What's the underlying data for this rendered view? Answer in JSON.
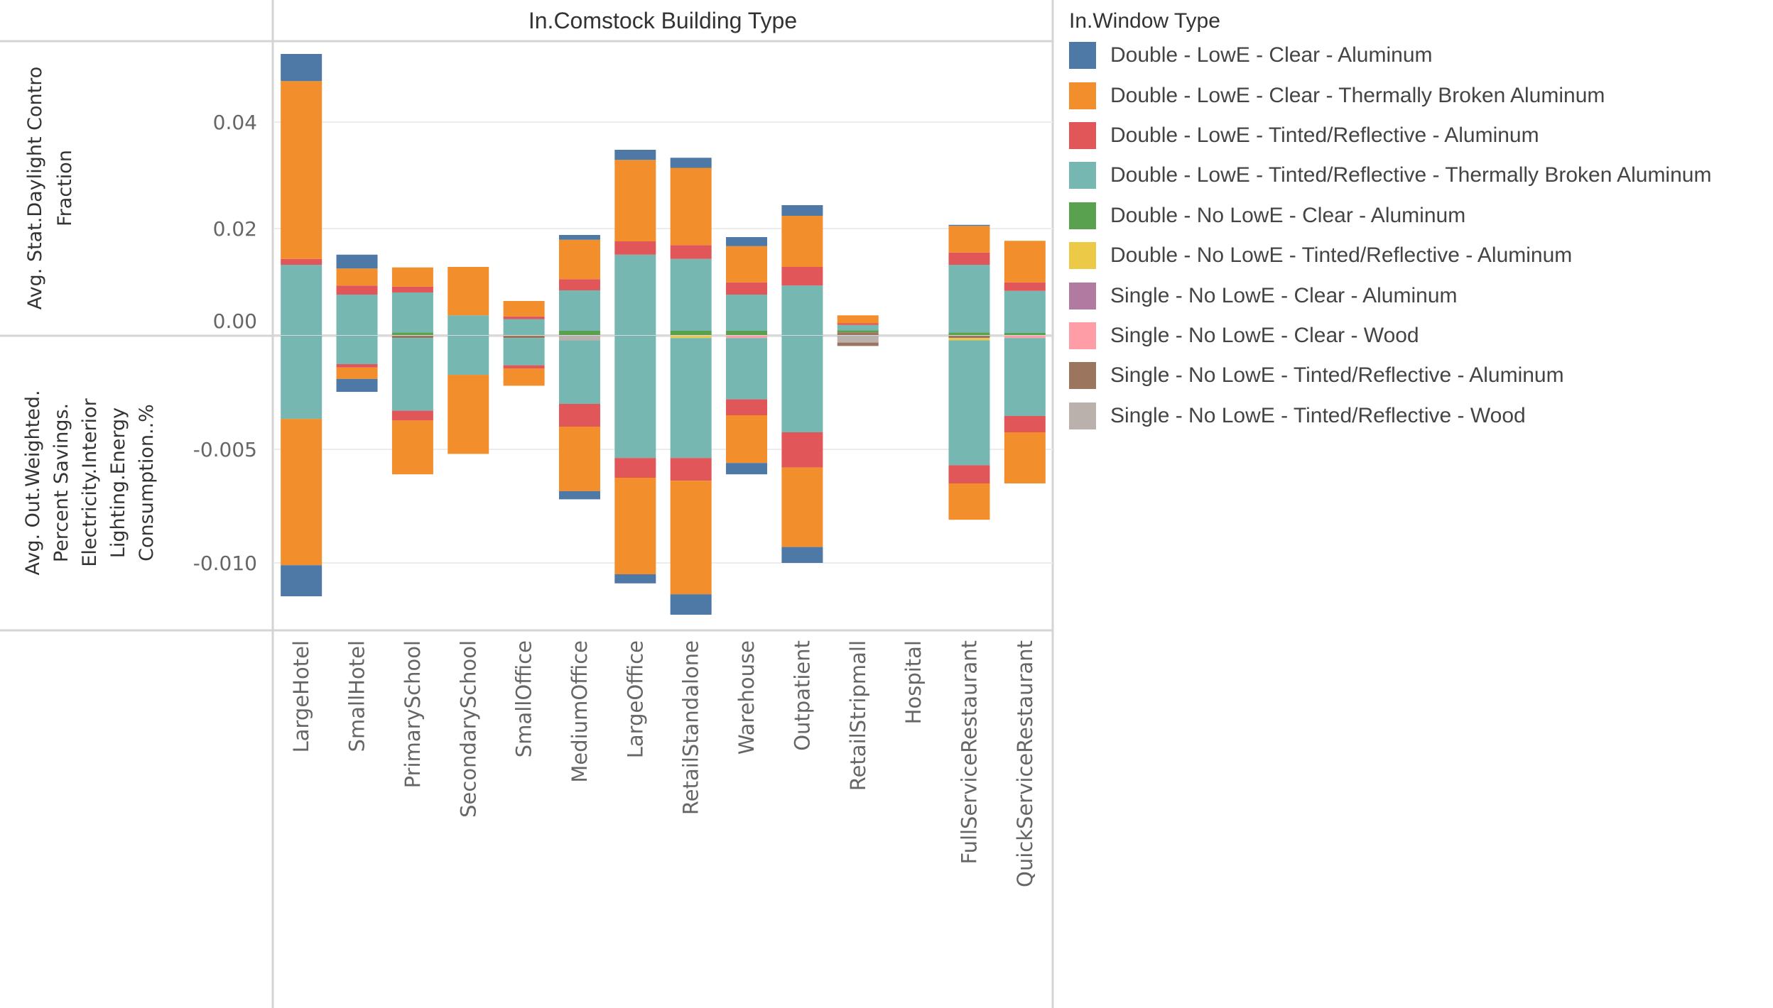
{
  "chart_data": {
    "type": "bar",
    "stacked": true,
    "column_header": "In.Comstock Building Type",
    "categories": [
      "LargeHotel",
      "SmallHotel",
      "PrimarySchool",
      "SecondarySchool",
      "SmallOffice",
      "MediumOffice",
      "LargeOffice",
      "RetailStandalone",
      "Warehouse",
      "Outpatient",
      "RetailStripmall",
      "Hospital",
      "FullServiceRestaurant",
      "QuickServiceRestaurant"
    ],
    "legend": {
      "title": "In.Window Type",
      "placement": "right",
      "entries": [
        {
          "key": "dl_clear_al",
          "label": "Double - LowE - Clear - Aluminum",
          "color": "#4E79A7"
        },
        {
          "key": "dl_clear_tb",
          "label": "Double - LowE - Clear - Thermally Broken Aluminum",
          "color": "#F28E2B"
        },
        {
          "key": "dl_tint_al",
          "label": "Double - LowE - Tinted/Reflective - Aluminum",
          "color": "#E15759"
        },
        {
          "key": "dl_tint_tb",
          "label": "Double - LowE - Tinted/Reflective - Thermally Broken Aluminum",
          "color": "#76B7B2"
        },
        {
          "key": "dn_clear_al",
          "label": "Double - No LowE - Clear - Aluminum",
          "color": "#59A14F"
        },
        {
          "key": "dn_tint_al",
          "label": "Double - No LowE - Tinted/Reflective - Aluminum",
          "color": "#EDC948"
        },
        {
          "key": "sn_clear_al",
          "label": "Single - No LowE - Clear - Aluminum",
          "color": "#B07AA1"
        },
        {
          "key": "sn_clear_wood",
          "label": "Single - No LowE - Clear - Wood",
          "color": "#FF9DA7"
        },
        {
          "key": "sn_tint_al",
          "label": "Single - No LowE - Tinted/Reflective - Aluminum",
          "color": "#9C755F"
        },
        {
          "key": "sn_tint_wood",
          "label": "Single - No LowE - Tinted/Reflective - Wood",
          "color": "#BAB0AC"
        }
      ]
    },
    "stack_order_from_zero": [
      "sn_tint_wood",
      "sn_tint_al",
      "sn_clear_wood",
      "sn_clear_al",
      "dn_tint_al",
      "dn_clear_al",
      "dl_tint_tb",
      "dl_tint_al",
      "dl_clear_tb",
      "dl_clear_al"
    ],
    "panes": [
      {
        "name": "daylight",
        "ylabel": "Avg. Stat.Daylight Contro Fraction",
        "ylim": [
          0,
          0.055
        ],
        "ticks": [
          0.0,
          0.02,
          0.04
        ],
        "tick_labels": [
          "0.00",
          "0.02",
          "0.04"
        ],
        "grid": true,
        "series": [
          {
            "key": "dl_clear_al",
            "values": [
              0.0051,
              0.0026,
              0,
              0,
              0,
              0.0009,
              0.0019,
              0.0019,
              0.0017,
              0.002,
              0,
              0,
              0.0002,
              0
            ]
          },
          {
            "key": "dl_clear_tb",
            "values": [
              0.0334,
              0.0032,
              0.0036,
              0.0091,
              0.0029,
              0.0074,
              0.0153,
              0.0145,
              0.0068,
              0.0096,
              0.0015,
              0,
              0.005,
              0.0078
            ]
          },
          {
            "key": "dl_tint_al",
            "values": [
              0.0011,
              0.0017,
              0.0011,
              0,
              0.0005,
              0.0021,
              0.0025,
              0.0026,
              0.0023,
              0.0035,
              0.0003,
              0,
              0.0023,
              0.0016
            ]
          },
          {
            "key": "dl_tint_tb",
            "values": [
              0.0132,
              0.0076,
              0.0075,
              0.0037,
              0.003,
              0.0076,
              0.0151,
              0.0135,
              0.0068,
              0.0093,
              0.001,
              0,
              0.0127,
              0.0079
            ]
          },
          {
            "key": "dn_clear_al",
            "values": [
              0,
              0,
              0.0005,
              0,
              0,
              0.0008,
              0,
              0.0008,
              0.0008,
              0,
              0.0004,
              0,
              0.0005,
              0.0004
            ]
          },
          {
            "key": "dn_tint_al",
            "values": [
              0,
              0,
              0,
              0,
              0,
              0,
              0,
              0,
              0,
              0,
              0,
              0,
              0,
              0
            ]
          },
          {
            "key": "sn_clear_al",
            "values": [
              0,
              0,
              0,
              0,
              0,
              0,
              0,
              0,
              0,
              0,
              0,
              0,
              0,
              0
            ]
          },
          {
            "key": "sn_clear_wood",
            "values": [
              0,
              0,
              0,
              0,
              0,
              0,
              0,
              0,
              0,
              0,
              0,
              0,
              0,
              0
            ]
          },
          {
            "key": "sn_tint_al",
            "values": [
              0,
              0,
              0,
              0,
              0,
              0,
              0,
              0,
              0,
              0,
              0.0005,
              0,
              0,
              0
            ]
          },
          {
            "key": "sn_tint_wood",
            "values": [
              0,
              0,
              0,
              0,
              0,
              0,
              0,
              0,
              0,
              0,
              0,
              0,
              0,
              0
            ]
          }
        ]
      },
      {
        "name": "savings",
        "ylabel": "Avg. Out.Weighted. Percent Savings. Electricity.Interior Lighting.Energy Consumption..%",
        "ylim": [
          -0.0129,
          0
        ],
        "ticks": [
          -0.005,
          -0.01
        ],
        "tick_labels": [
          "-0.005",
          "-0.010"
        ],
        "grid": true,
        "series": [
          {
            "key": "dl_clear_al",
            "values": [
              -0.00137,
              -0.00057,
              0,
              0,
              0,
              -0.00036,
              -0.0004,
              -0.0009,
              -0.0005,
              -0.0007,
              0,
              0,
              0,
              0
            ]
          },
          {
            "key": "dl_clear_tb",
            "values": [
              -0.00644,
              -0.0005,
              -0.00237,
              -0.00348,
              -0.00076,
              -0.00284,
              -0.00425,
              -0.005,
              -0.0021,
              -0.0035,
              0,
              0,
              -0.0016,
              -0.00225
            ]
          },
          {
            "key": "dl_tint_al",
            "values": [
              0,
              -0.00015,
              -0.00043,
              0,
              -0.00014,
              -0.001,
              -0.00087,
              -0.001,
              -0.0007,
              -0.00155,
              0,
              0,
              -0.0008,
              -0.00072
            ]
          },
          {
            "key": "dl_tint_tb",
            "values": [
              -0.00366,
              -0.00125,
              -0.0032,
              -0.00172,
              -0.0012,
              -0.0028,
              -0.00538,
              -0.00528,
              -0.0027,
              -0.00425,
              0,
              0,
              -0.0055,
              -0.00343
            ]
          },
          {
            "key": "dn_clear_al",
            "values": [
              0,
              0,
              0,
              0,
              0,
              0,
              0,
              0,
              0,
              0,
              0,
              0,
              0,
              0
            ]
          },
          {
            "key": "dn_tint_al",
            "values": [
              0,
              0,
              0,
              0,
              0,
              0,
              0,
              -0.0001,
              0,
              0,
              0,
              0,
              -0.0001,
              0
            ]
          },
          {
            "key": "sn_clear_al",
            "values": [
              0,
              0,
              0,
              0,
              0,
              0,
              0,
              0,
              0,
              0,
              0,
              0,
              0,
              0
            ]
          },
          {
            "key": "sn_clear_wood",
            "values": [
              0,
              0,
              0,
              0,
              0,
              0,
              0,
              0,
              -0.0001,
              0,
              0,
              0,
              0,
              -0.0001
            ]
          },
          {
            "key": "sn_tint_al",
            "values": [
              0,
              0,
              -0.0001,
              0,
              -0.0001,
              0,
              0,
              0,
              0,
              0,
              -0.00015,
              0,
              -0.0001,
              0
            ]
          },
          {
            "key": "sn_tint_wood",
            "values": [
              0,
              0,
              0,
              0,
              0,
              -0.0002,
              0,
              0,
              0,
              0,
              -0.0003,
              0,
              0,
              0
            ]
          }
        ]
      }
    ]
  }
}
